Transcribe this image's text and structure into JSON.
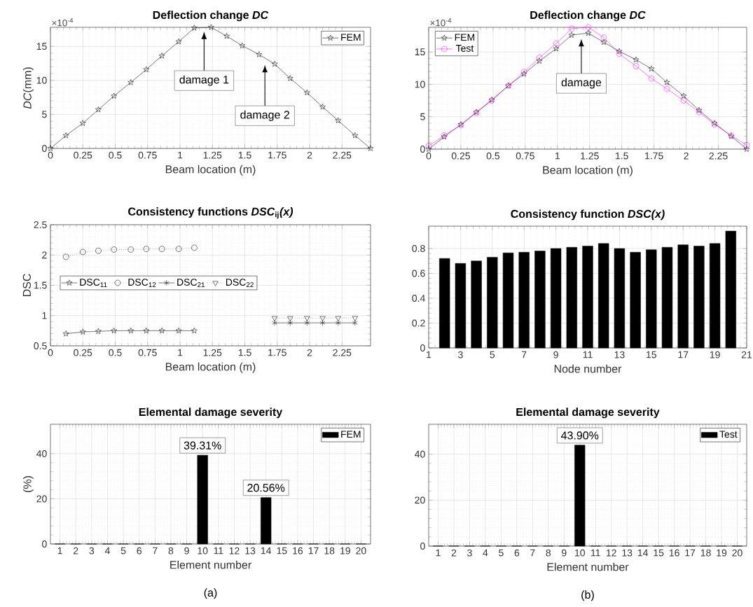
{
  "chart_data": [
    {
      "type": "line",
      "title": "Deflection change *DC*",
      "xlabel": "Beam location (m)",
      "ylabel": "*DC*(mm)",
      "x": [
        0,
        0.12,
        0.25,
        0.37,
        0.49,
        0.62,
        0.74,
        0.86,
        0.99,
        1.11,
        1.24,
        1.36,
        1.48,
        1.61,
        1.73,
        1.85,
        1.98,
        2.1,
        2.22,
        2.35,
        2.47
      ],
      "series": [
        {
          "name": "FEM",
          "color": "#000000",
          "marker": "star",
          "line_style": "solid",
          "values": [
            0,
            1.9,
            3.7,
            5.7,
            7.7,
            9.7,
            11.6,
            13.6,
            15.7,
            17.7,
            17.8,
            16.5,
            15.1,
            13.8,
            12.4,
            10.3,
            8.2,
            6.1,
            4.1,
            1.9,
            0
          ]
        }
      ],
      "xlim": [
        0,
        2.47
      ],
      "ylim": [
        0,
        17.8
      ],
      "xticks": [
        0,
        0.25,
        0.5,
        0.75,
        1,
        1.25,
        1.5,
        1.75,
        2,
        2.25
      ],
      "yticks": [
        0,
        5,
        10,
        15
      ],
      "grid": true,
      "legend": "top right",
      "annotations": [
        "×10$^{-4}$",
        "damage 1",
        "damage 2"
      ]
    },
    {
      "type": "line",
      "title": "Deflection change *DC*",
      "xlabel": "Beam location (m)",
      "x": [
        0,
        0.12,
        0.25,
        0.37,
        0.49,
        0.62,
        0.74,
        0.86,
        0.99,
        1.11,
        1.24,
        1.36,
        1.48,
        1.61,
        1.73,
        1.85,
        1.98,
        2.1,
        2.22,
        2.35,
        2.47
      ],
      "series": [
        {
          "name": "FEM",
          "color": "#000000",
          "marker": "star",
          "line_style": "solid",
          "values": [
            0,
            1.9,
            3.8,
            5.7,
            7.6,
            9.8,
            11.6,
            13.6,
            15.5,
            17.6,
            17.9,
            16.5,
            15.1,
            13.8,
            12.4,
            10.3,
            8.2,
            6.0,
            4.0,
            2.0,
            0
          ]
        },
        {
          "name": "Test",
          "color": "#ff00ff",
          "marker": "circle",
          "line_style": "solid",
          "values": [
            0.5,
            2.1,
            3.7,
            5.6,
            7.5,
            9.8,
            11.9,
            14.1,
            16.3,
            18.6,
            18.8,
            17.2,
            14.7,
            12.8,
            10.9,
            9.3,
            7.5,
            5.7,
            3.8,
            2.1,
            0.6
          ]
        }
      ],
      "xlim": [
        0,
        2.47
      ],
      "ylim": [
        0,
        18.8
      ],
      "xticks": [
        0,
        0.25,
        0.5,
        0.75,
        1,
        1.25,
        1.5,
        1.75,
        2,
        2.25
      ],
      "yticks": [
        0,
        5,
        10,
        15
      ],
      "grid": true,
      "legend": "top left",
      "annotations": [
        "×10$^{-4}$",
        "damage"
      ]
    },
    {
      "type": "line",
      "title": "Consistency functions *DSC*$_{ij}$*(x)*",
      "xlabel": "Beam location (m)",
      "ylabel": "DSC",
      "series": [
        {
          "name": "DSC$_{11}$",
          "color": "#000000",
          "marker": "star",
          "line_style": "solid",
          "x": [
            0.12,
            0.25,
            0.37,
            0.49,
            0.62,
            0.74,
            0.86,
            0.99,
            1.11
          ],
          "values": [
            0.7,
            0.73,
            0.74,
            0.75,
            0.75,
            0.75,
            0.75,
            0.75,
            0.75
          ]
        },
        {
          "name": "DSC$_{12}$",
          "color": "#000000",
          "marker": "circle",
          "line_style": "dotted",
          "x": [
            0.12,
            0.25,
            0.37,
            0.49,
            0.62,
            0.74,
            0.86,
            0.99,
            1.11
          ],
          "values": [
            1.97,
            2.05,
            2.07,
            2.09,
            2.09,
            2.1,
            2.1,
            2.1,
            2.12
          ]
        },
        {
          "name": "DSC$_{21}$",
          "color": "#000000",
          "marker": "cross",
          "line_style": "solid",
          "x": [
            1.73,
            1.85,
            1.98,
            2.1,
            2.22,
            2.35
          ],
          "values": [
            0.88,
            0.88,
            0.88,
            0.88,
            0.88,
            0.88
          ]
        },
        {
          "name": "DSC$_{22}$",
          "color": "#000000",
          "marker": "triangle",
          "line_style": "dotted",
          "x": [
            1.73,
            1.85,
            1.98,
            2.1,
            2.22,
            2.35
          ],
          "values": [
            0.96,
            0.96,
            0.96,
            0.96,
            0.96,
            0.96
          ]
        }
      ],
      "xlim": [
        0,
        2.47
      ],
      "ylim": [
        0.5,
        2.5
      ],
      "xticks": [
        0,
        0.25,
        0.5,
        0.75,
        1,
        1.25,
        1.5,
        1.75,
        2,
        2.25
      ],
      "yticks": [
        0.5,
        1,
        1.5,
        2,
        2.5
      ],
      "grid": true,
      "legend": "left"
    },
    {
      "type": "bar",
      "title": "Consistency function *DSC(x)*",
      "xlabel": "Node number",
      "x": [
        2,
        3,
        4,
        5,
        6,
        7,
        8,
        9,
        10,
        11,
        12,
        13,
        14,
        15,
        16,
        17,
        18,
        19,
        20
      ],
      "series": [
        {
          "color": "#000000",
          "values": [
            0.72,
            0.68,
            0.7,
            0.73,
            0.765,
            0.77,
            0.78,
            0.8,
            0.81,
            0.82,
            0.84,
            0.8,
            0.77,
            0.79,
            0.81,
            0.83,
            0.82,
            0.84,
            0.94
          ]
        }
      ],
      "xlim": [
        1,
        21
      ],
      "ylim": [
        0,
        0.98
      ],
      "xticks": [
        1,
        3,
        5,
        7,
        9,
        11,
        13,
        15,
        17,
        19,
        21
      ],
      "yticks": [
        0,
        0.2,
        0.4,
        0.6,
        0.8
      ],
      "grid": true
    },
    {
      "type": "bar",
      "title": "Elemental damage severity",
      "xlabel": "Element number",
      "ylabel": "(%)",
      "categories": [
        "1",
        "2",
        "3",
        "4",
        "5",
        "6",
        "7",
        "8",
        "9",
        "10",
        "11",
        "12",
        "13",
        "14",
        "15",
        "16",
        "17",
        "18",
        "19",
        "20"
      ],
      "series": [
        {
          "name": "FEM",
          "color": "#000000",
          "values": [
            0,
            0,
            0,
            0,
            0,
            0,
            0,
            0,
            0,
            39.31,
            0,
            0,
            0,
            20.56,
            0,
            0,
            0,
            0,
            0,
            0
          ],
          "value_labels": [
            null,
            null,
            null,
            null,
            null,
            null,
            null,
            null,
            null,
            "39.31%",
            null,
            null,
            null,
            "20.56%",
            null,
            null,
            null,
            null,
            null,
            null
          ]
        }
      ],
      "ylim": [
        0,
        53
      ],
      "yticks": [
        0,
        20,
        40
      ],
      "grid": true,
      "legend": "top right",
      "annotations": [
        "(a)"
      ]
    },
    {
      "type": "bar",
      "title": "Elemental damage severity",
      "xlabel": "Element number",
      "categories": [
        "1",
        "2",
        "3",
        "4",
        "5",
        "6",
        "7",
        "8",
        "9",
        "10",
        "11",
        "12",
        "13",
        "14",
        "15",
        "16",
        "17",
        "18",
        "19",
        "20"
      ],
      "series": [
        {
          "name": "Test",
          "color": "#000000",
          "values": [
            0,
            0,
            0,
            0,
            0,
            0,
            0,
            0,
            0,
            43.9,
            0,
            0,
            0,
            0,
            0,
            0,
            0,
            0,
            0,
            0
          ],
          "value_labels": [
            null,
            null,
            null,
            null,
            null,
            null,
            null,
            null,
            null,
            "43.90%",
            null,
            null,
            null,
            null,
            null,
            null,
            null,
            null,
            null,
            null
          ]
        }
      ],
      "ylim": [
        0,
        53
      ],
      "yticks": [
        0,
        20,
        40
      ],
      "grid": true,
      "legend": "top right",
      "annotations": [
        "(b)"
      ]
    }
  ]
}
